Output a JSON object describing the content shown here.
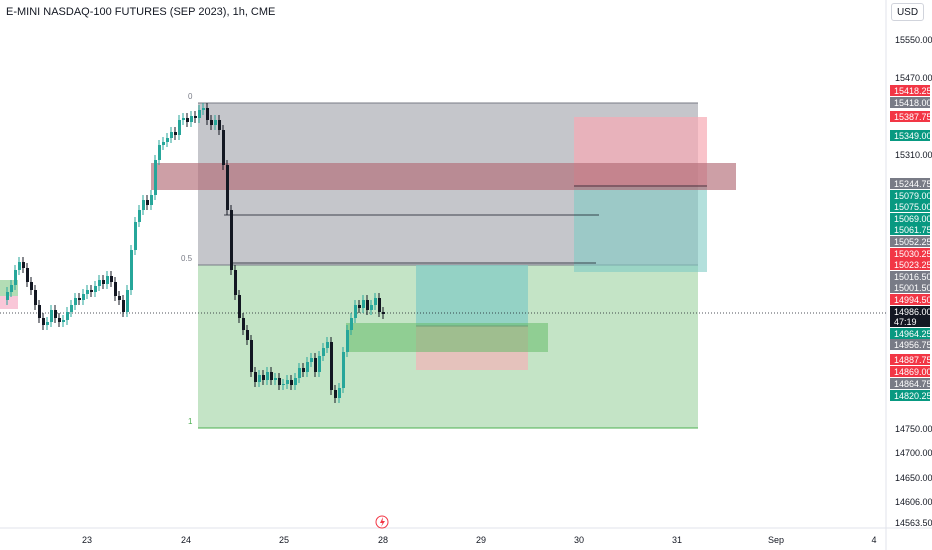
{
  "header": {
    "title": "E-MINI NASDAQ-100 FUTURES (SEP 2023), 1h, CME",
    "currency": "USD"
  },
  "colors": {
    "up": "#26a69a",
    "down": "#000000",
    "green": "#089981",
    "red": "#f23645",
    "gray": "#787b86",
    "black": "#131722"
  },
  "price_axis": {
    "ticks": [
      "15550.00",
      "15470.00",
      "15310.00",
      "14750.00",
      "14700.00",
      "14650.00",
      "14606.00",
      "14563.50"
    ]
  },
  "price_tags": [
    {
      "text": "15418.25",
      "color": "red"
    },
    {
      "text": "15418.00",
      "color": "gray"
    },
    {
      "text": "15387.75",
      "color": "red"
    },
    {
      "text": "15349.00",
      "color": "green"
    },
    {
      "text": "15244.75",
      "color": "gray"
    },
    {
      "text": "15079.00",
      "color": "green"
    },
    {
      "text": "15075.00",
      "color": "green"
    },
    {
      "text": "15069.00",
      "color": "green"
    },
    {
      "text": "15061.75",
      "color": "green"
    },
    {
      "text": "15052.25",
      "color": "gray"
    },
    {
      "text": "15030.25",
      "color": "red"
    },
    {
      "text": "15023.25",
      "color": "red"
    },
    {
      "text": "15016.50",
      "color": "gray"
    },
    {
      "text": "15001.50",
      "color": "gray"
    },
    {
      "text": "14994.50",
      "color": "red"
    },
    {
      "text": "14986.00",
      "color": "black"
    },
    {
      "text": "47:19",
      "color": "black"
    },
    {
      "text": "14964.25",
      "color": "green"
    },
    {
      "text": "14956.75",
      "color": "gray"
    },
    {
      "text": "14887.75",
      "color": "red"
    },
    {
      "text": "14869.00",
      "color": "red"
    },
    {
      "text": "14864.75",
      "color": "gray"
    },
    {
      "text": "14820.25",
      "color": "green"
    }
  ],
  "time_axis": {
    "labels": [
      "23",
      "24",
      "25",
      "28",
      "29",
      "30",
      "31",
      "Sep",
      "4"
    ]
  },
  "fib_labels": [
    "0",
    "0.5",
    "1"
  ],
  "lightning_icon": "lightning-icon"
}
